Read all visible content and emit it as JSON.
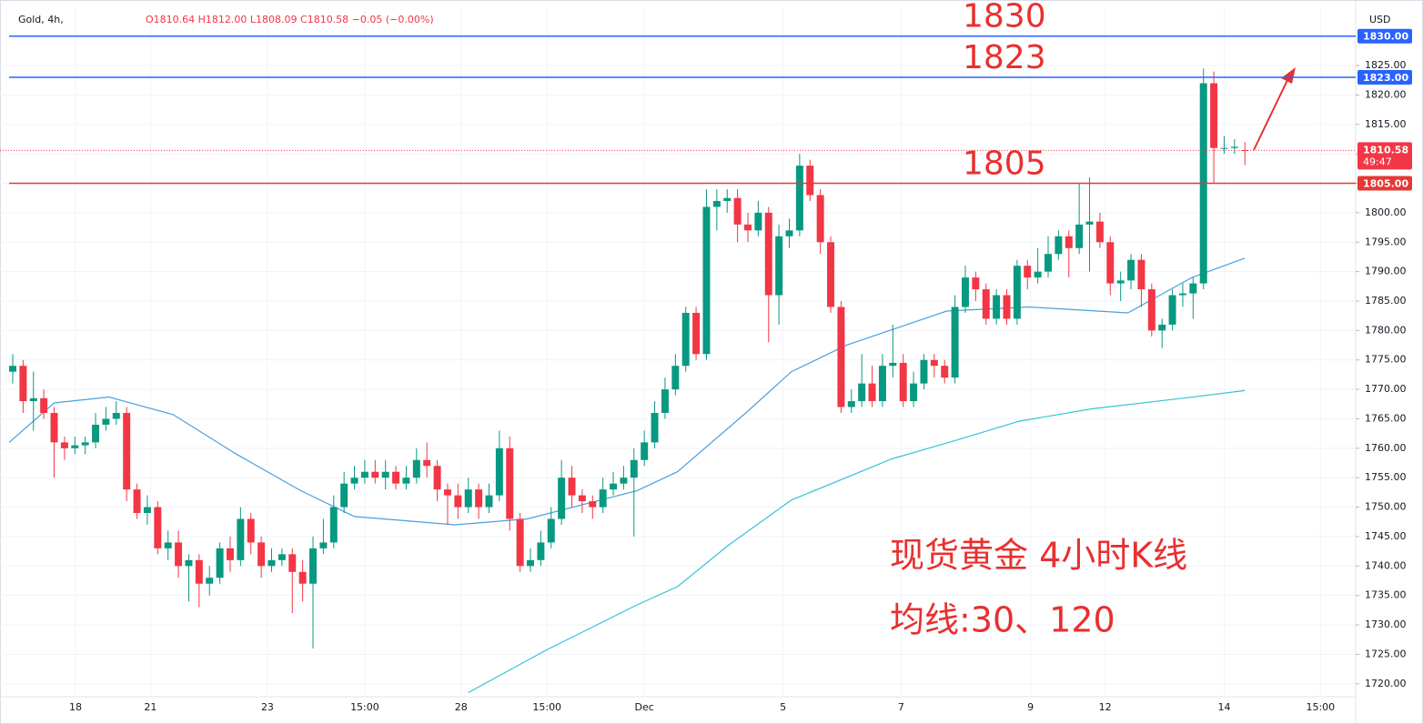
{
  "chart_data": {
    "type": "candlestick",
    "symbol": "Gold, 4h,",
    "ohlc_text": "O1810.64 H1812.00 L1808.09 C1810.58 −0.05 (−0.00%)",
    "currency": "USD",
    "up_color": "#089981",
    "down_color": "#f23645",
    "open": [
      1773,
      1774,
      1768,
      1768.5,
      1766,
      1761,
      1760,
      1760.5,
      1761,
      1764,
      1765,
      1766,
      1753,
      1749,
      1750,
      1743,
      1744,
      1740,
      1741,
      1737,
      1738,
      1743,
      1741,
      1748,
      1744,
      1740,
      1741,
      1742,
      1739,
      1737,
      1743,
      1744,
      1750,
      1754,
      1755,
      1756,
      1755,
      1756,
      1754,
      1755,
      1758,
      1757,
      1753,
      1752,
      1750,
      1753,
      1750,
      1752,
      1760,
      1748,
      1740,
      1741,
      1744,
      1748,
      1755,
      1752,
      1751,
      1750,
      1753,
      1754,
      1755,
      1758,
      1761,
      1766,
      1770,
      1774,
      1783,
      1776,
      1801,
      1802,
      1802.5,
      1798,
      1797,
      1800,
      1786,
      1796,
      1797,
      1808,
      1803,
      1795,
      1784,
      1767,
      1768,
      1771,
      1768,
      1774,
      1774.5,
      1768,
      1771,
      1775,
      1774,
      1772,
      1784,
      1789,
      1787,
      1782,
      1786,
      1782,
      1791,
      1789,
      1790,
      1793,
      1796,
      1794,
      1798,
      1798.5,
      1795,
      1788,
      1788.5,
      1792,
      1787,
      1780,
      1781,
      1786,
      1786.3,
      1788,
      1822,
      1811,
      1811,
      1810.64
    ],
    "high": [
      1776,
      1775,
      1773,
      1770,
      1767,
      1762,
      1762,
      1762,
      1766,
      1767,
      1768,
      1767,
      1754,
      1752,
      1751,
      1746,
      1746,
      1742,
      1742,
      1740,
      1744,
      1745,
      1750,
      1749,
      1745,
      1743,
      1743,
      1743,
      1741,
      1745,
      1748,
      1752,
      1756,
      1757,
      1758,
      1758,
      1758,
      1757,
      1757,
      1760,
      1761,
      1758,
      1754,
      1754,
      1755,
      1754,
      1754,
      1763,
      1762,
      1749,
      1743,
      1746,
      1750,
      1758,
      1757,
      1753,
      1752,
      1755,
      1756,
      1757,
      1760,
      1763,
      1768,
      1772,
      1776,
      1784,
      1784,
      1804,
      1804,
      1804,
      1804,
      1800,
      1802,
      1801,
      1798,
      1799,
      1810,
      1809,
      1804,
      1796,
      1785,
      1770,
      1776,
      1774,
      1776,
      1781,
      1776,
      1773,
      1776,
      1776,
      1775,
      1786,
      1791,
      1790,
      1788,
      1787,
      1787,
      1792,
      1792,
      1794,
      1796,
      1797,
      1797,
      1805,
      1806,
      1800,
      1796,
      1790,
      1793,
      1793,
      1788,
      1782,
      1787,
      1788,
      1789,
      1824.5,
      1824,
      1813,
      1812.5,
      1812
    ],
    "low": [
      1771,
      1766,
      1763,
      1765,
      1755,
      1758,
      1759,
      1759,
      1760,
      1763,
      1764,
      1751,
      1748,
      1747,
      1742,
      1741,
      1738,
      1734,
      1733,
      1735,
      1737,
      1739,
      1740,
      1742,
      1738,
      1739,
      1740,
      1732,
      1734,
      1726,
      1742,
      1743,
      1749,
      1753,
      1754,
      1754,
      1753,
      1753,
      1753,
      1754,
      1755,
      1751,
      1747,
      1748,
      1749,
      1748,
      1749,
      1751,
      1746,
      1739,
      1739,
      1740,
      1743,
      1747,
      1750,
      1749,
      1748,
      1749,
      1752,
      1753,
      1745,
      1757,
      1760,
      1765,
      1769,
      1773,
      1775,
      1775,
      1797,
      1800,
      1795,
      1795,
      1796,
      1778,
      1781,
      1794,
      1796,
      1802,
      1793,
      1783,
      1766,
      1766,
      1767,
      1767,
      1767,
      1772,
      1767,
      1767,
      1770,
      1772,
      1771,
      1771,
      1783,
      1785,
      1781,
      1781,
      1781,
      1781,
      1787,
      1788,
      1789,
      1792,
      1789,
      1793,
      1790,
      1794,
      1786,
      1785,
      1787,
      1784,
      1779,
      1777,
      1780,
      1784,
      1782,
      1787,
      1805,
      1810,
      1810,
      1808.09
    ],
    "close": [
      1774,
      1768,
      1768.5,
      1766,
      1761,
      1760,
      1760.5,
      1761,
      1764,
      1765,
      1766,
      1753,
      1749,
      1750,
      1743,
      1744,
      1740,
      1741,
      1737,
      1738,
      1743,
      1741,
      1748,
      1744,
      1740,
      1741,
      1742,
      1739,
      1737,
      1743,
      1744,
      1750,
      1754,
      1755,
      1756,
      1755,
      1756,
      1754,
      1755,
      1758,
      1757,
      1753,
      1752,
      1750,
      1753,
      1750,
      1752,
      1760,
      1748,
      1740,
      1741,
      1744,
      1748,
      1755,
      1752,
      1751,
      1750,
      1753,
      1754,
      1755,
      1758,
      1761,
      1766,
      1770,
      1774,
      1783,
      1776,
      1801,
      1802,
      1802.5,
      1798,
      1797,
      1800,
      1786,
      1796,
      1797,
      1808,
      1803,
      1795,
      1784,
      1767,
      1768,
      1771,
      1768,
      1774,
      1774.5,
      1768,
      1771,
      1775,
      1774,
      1772,
      1784,
      1789,
      1787,
      1782,
      1786,
      1782,
      1791,
      1789,
      1790,
      1793,
      1796,
      1794,
      1798,
      1798.5,
      1795,
      1788,
      1788.5,
      1792,
      1787,
      1780,
      1781,
      1786,
      1786.3,
      1788,
      1822,
      1811,
      1811,
      1811.2,
      1810.58
    ],
    "moving_averages": [
      {
        "color": "#4a9fe0",
        "x": [
          -0.35,
          4.0,
          9.3,
          15.5,
          21.6,
          27.8,
          33.0,
          42.7,
          49.7,
          60.3,
          64.2,
          70.8,
          75.2,
          80.5,
          90.2,
          98.1,
          107.7,
          113.9,
          119
        ],
        "values": [
          1761,
          1767.7,
          1768.7,
          1765.7,
          1759,
          1752.8,
          1748.4,
          1747,
          1748,
          1752.8,
          1756,
          1766,
          1773,
          1777.5,
          1783.3,
          1784,
          1783,
          1789,
          1792.3
        ]
      },
      {
        "color": "#33c3d6",
        "x": [
          44.0,
          51.5,
          60.3,
          64.2,
          69.1,
          75.2,
          84.9,
          91.0,
          97.2,
          104.2,
          113.0,
          119
        ],
        "values": [
          1718.5,
          1725.7,
          1733.4,
          1736.5,
          1743.5,
          1751.2,
          1758.2,
          1761.3,
          1764.6,
          1766.7,
          1768.5,
          1769.8
        ]
      }
    ],
    "levels": [
      {
        "value": 1830,
        "label": "1830.00",
        "color": "#2962ff"
      },
      {
        "value": 1823,
        "label": "1823.00",
        "color": "#2962ff"
      },
      {
        "value": 1805,
        "label": "1805.00",
        "color": "#e53935"
      }
    ],
    "last_price": {
      "value": 1810.58,
      "label": "1810.58",
      "countdown": "49:47",
      "color": "#f23645"
    },
    "annotations": [
      {
        "text": "1830",
        "value": 1830
      },
      {
        "text": "1823",
        "value": 1823
      },
      {
        "text": "1805",
        "value": 1805
      }
    ],
    "caption": [
      "现货黄金 4小时K线",
      "均线:30、120"
    ],
    "xlim": [
      -1.23,
      129.7
    ],
    "ylim": [
      1717.8,
      1834.9
    ],
    "yticks": [
      {
        "value": 1720,
        "label": "1720.00"
      },
      {
        "value": 1725,
        "label": "1725.00"
      },
      {
        "value": 1730,
        "label": "1730.00"
      },
      {
        "value": 1735,
        "label": "1735.00"
      },
      {
        "value": 1740,
        "label": "1740.00"
      },
      {
        "value": 1745,
        "label": "1745.00"
      },
      {
        "value": 1750,
        "label": "1750.00"
      },
      {
        "value": 1755,
        "label": "1755.00"
      },
      {
        "value": 1760,
        "label": "1760.00"
      },
      {
        "value": 1765,
        "label": "1765.00"
      },
      {
        "value": 1770,
        "label": "1770.00"
      },
      {
        "value": 1775,
        "label": "1775.00"
      },
      {
        "value": 1780,
        "label": "1780.00"
      },
      {
        "value": 1785,
        "label": "1785.00"
      },
      {
        "value": 1790,
        "label": "1790.00"
      },
      {
        "value": 1795,
        "label": "1795.00"
      },
      {
        "value": 1800,
        "label": "1800.00"
      },
      {
        "value": 1805,
        "label": "1805.00"
      },
      {
        "value": 1810,
        "label": "1810.00"
      },
      {
        "value": 1815,
        "label": "1815.00"
      },
      {
        "value": 1820,
        "label": "1820.00"
      },
      {
        "value": 1825,
        "label": "1825.00"
      }
    ],
    "xticks": [
      {
        "value": 6.06,
        "label": "18"
      },
      {
        "value": 13.3,
        "label": "21"
      },
      {
        "value": 24.6,
        "label": "23"
      },
      {
        "value": 34.0,
        "label": "15:00"
      },
      {
        "value": 43.3,
        "label": "28"
      },
      {
        "value": 51.6,
        "label": "15:00"
      },
      {
        "value": 61.0,
        "label": "Dec"
      },
      {
        "value": 74.4,
        "label": "5"
      },
      {
        "value": 85.8,
        "label": "7"
      },
      {
        "value": 98.3,
        "label": "9"
      },
      {
        "value": 105.5,
        "label": "12"
      },
      {
        "value": 117.0,
        "label": "14"
      },
      {
        "value": 126.3,
        "label": "15:00"
      }
    ]
  }
}
